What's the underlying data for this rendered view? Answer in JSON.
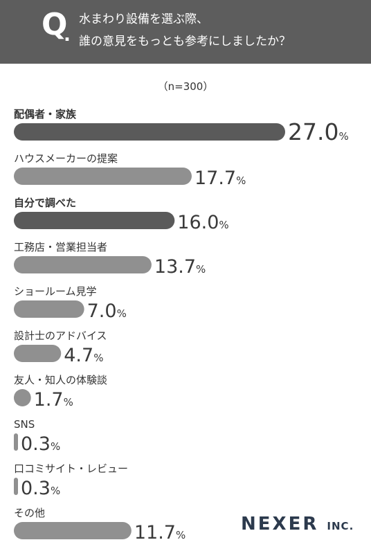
{
  "header": {
    "q_mark": "Q",
    "q_dot": ".",
    "question_line1": "水まわり設備を選ぶ際、",
    "question_line2": "誰の意見をもっとも参考にしましたか？"
  },
  "sample_note": "（n=300）",
  "logo": {
    "main": "NEXER",
    "suffix": "INC."
  },
  "colors": {
    "dark_bar": "#5a5a5a",
    "light_bar": "#909090",
    "header_bg": "#5d5d5d"
  },
  "chart_data": {
    "type": "bar",
    "orientation": "horizontal",
    "unit": "%",
    "categories": [
      "配偶者・家族",
      "ハウスメーカーの提案",
      "自分で調べた",
      "工務店・営業担当者",
      "ショールーム見学",
      "設計士のアドバイス",
      "友人・知人の体験談",
      "SNS",
      "口コミサイト・レビュー",
      "その他"
    ],
    "values": [
      27.0,
      17.7,
      16.0,
      13.7,
      7.0,
      4.7,
      1.7,
      0.3,
      0.3,
      11.7
    ],
    "value_labels": [
      "27.0",
      "17.7",
      "16.0",
      "13.7",
      "7.0",
      "4.7",
      "1.7",
      "0.3",
      "0.3",
      "11.7"
    ],
    "highlight": [
      true,
      false,
      true,
      false,
      false,
      false,
      false,
      false,
      false,
      false
    ],
    "xlim": [
      0,
      27.0
    ],
    "grid": false,
    "legend": "none"
  }
}
